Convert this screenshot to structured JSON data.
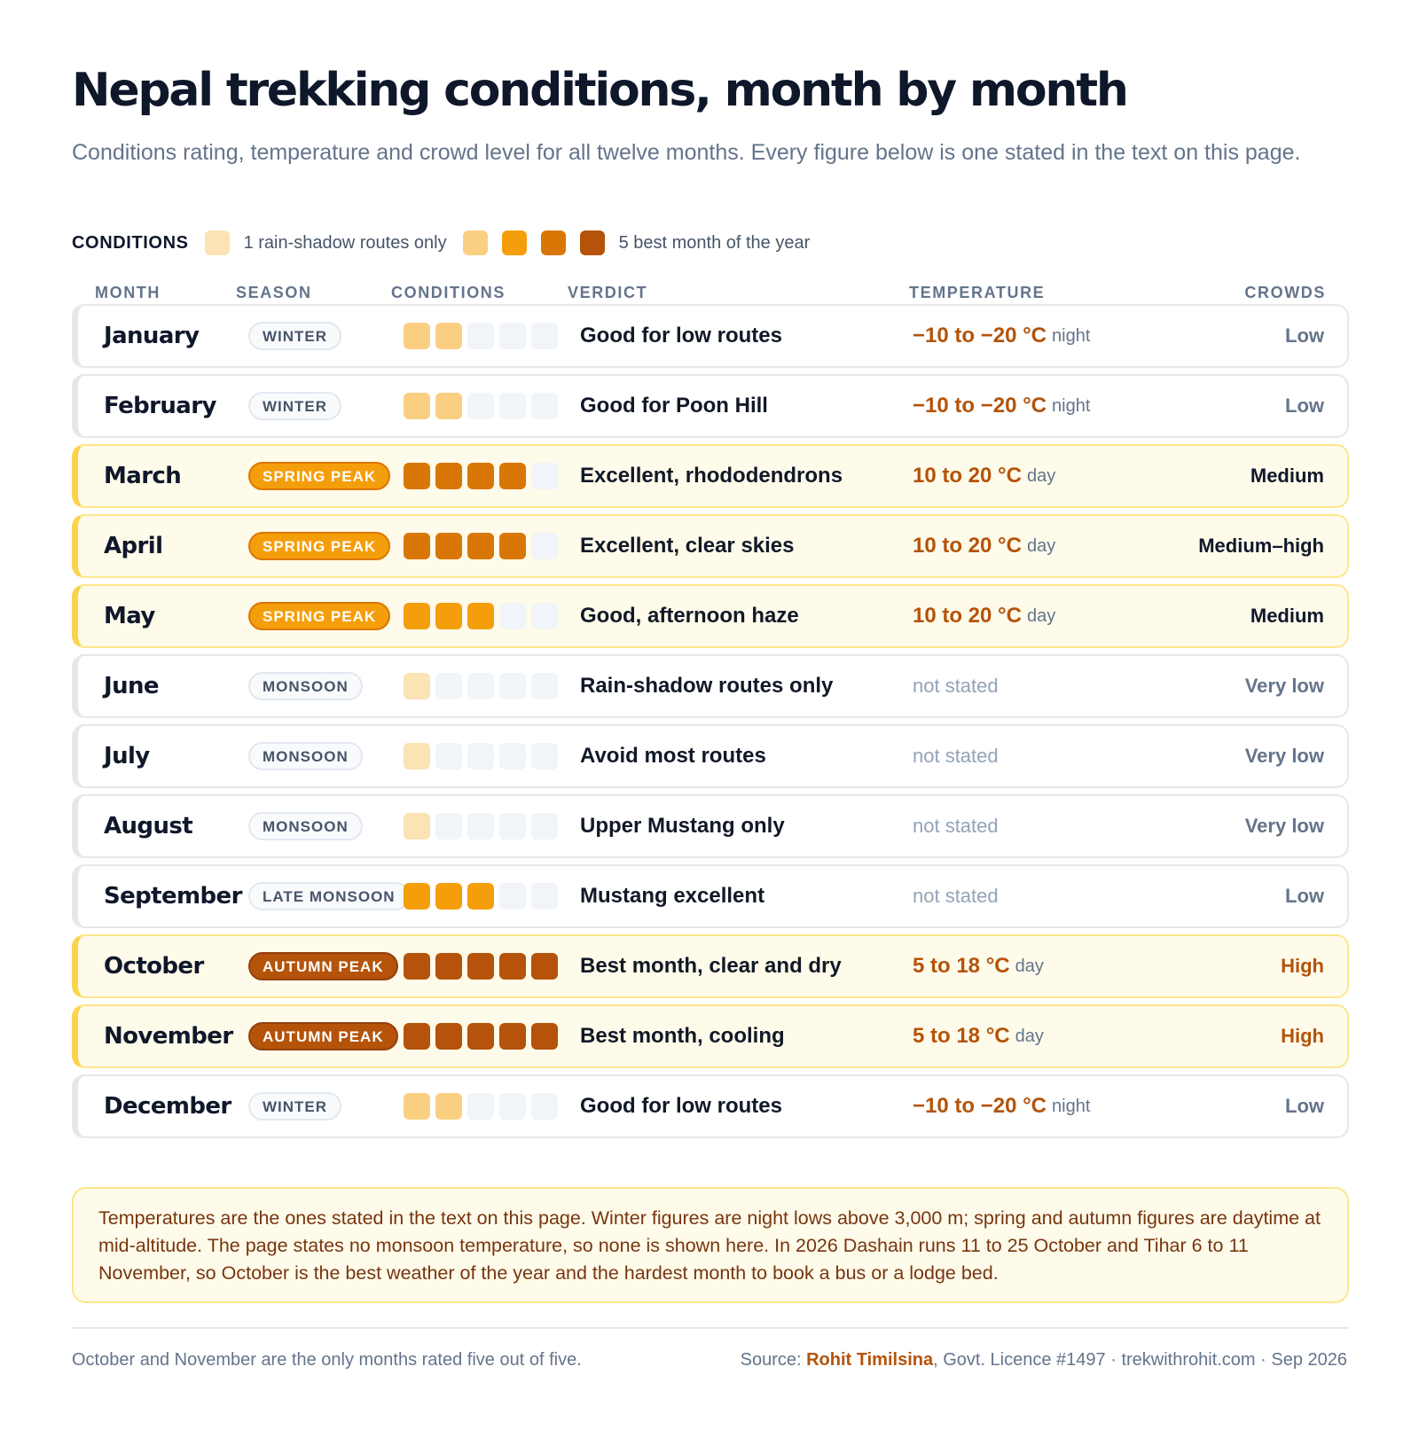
{
  "title": "Nepal trekking conditions, month by month",
  "subtitle": "Conditions rating, temperature and crowd level for all twelve months. Every figure below is one stated in the text on this page.",
  "legend": {
    "title": "CONDITIONS",
    "low_label": "1 rain-shadow routes only",
    "high_label": "5 best month of the year",
    "colors": [
      "#fbe3b4",
      "#fbcf82",
      "#f59e0b",
      "#d97706",
      "#b45309"
    ]
  },
  "headers": {
    "month": "MONTH",
    "season": "SEASON",
    "conditions": "CONDITIONS",
    "verdict": "VERDICT",
    "temperature": "TEMPERATURE",
    "crowds": "CROWDS"
  },
  "rows": [
    {
      "month": "January",
      "season": "WINTER",
      "season_type": "winter",
      "rating": 2,
      "verdict": "Good for low routes",
      "temp": "−10 to −20 °C",
      "temp_unit": "night",
      "crowds": "Low",
      "peak": false
    },
    {
      "month": "February",
      "season": "WINTER",
      "season_type": "winter",
      "rating": 2,
      "verdict": "Good for Poon Hill",
      "temp": "−10 to −20 °C",
      "temp_unit": "night",
      "crowds": "Low",
      "peak": false
    },
    {
      "month": "March",
      "season": "SPRING PEAK",
      "season_type": "spring",
      "rating": 4,
      "verdict": "Excellent, rhododendrons",
      "temp": "10 to 20 °C",
      "temp_unit": "day",
      "crowds": "Medium",
      "peak": true
    },
    {
      "month": "April",
      "season": "SPRING PEAK",
      "season_type": "spring",
      "rating": 4,
      "verdict": "Excellent, clear skies",
      "temp": "10 to 20 °C",
      "temp_unit": "day",
      "crowds": "Medium–high",
      "peak": true
    },
    {
      "month": "May",
      "season": "SPRING PEAK",
      "season_type": "spring",
      "rating": 3,
      "verdict": "Good, afternoon haze",
      "temp": "10 to 20 °C",
      "temp_unit": "day",
      "crowds": "Medium",
      "peak": true
    },
    {
      "month": "June",
      "season": "MONSOON",
      "season_type": "monsoon",
      "rating": 1,
      "verdict": "Rain-shadow routes only",
      "temp": "not stated",
      "temp_unit": "",
      "crowds": "Very low",
      "peak": false
    },
    {
      "month": "July",
      "season": "MONSOON",
      "season_type": "monsoon",
      "rating": 1,
      "verdict": "Avoid most routes",
      "temp": "not stated",
      "temp_unit": "",
      "crowds": "Very low",
      "peak": false
    },
    {
      "month": "August",
      "season": "MONSOON",
      "season_type": "monsoon",
      "rating": 1,
      "verdict": "Upper Mustang only",
      "temp": "not stated",
      "temp_unit": "",
      "crowds": "Very low",
      "peak": false
    },
    {
      "month": "September",
      "season": "LATE MONSOON",
      "season_type": "monsoon",
      "rating": 3,
      "verdict": "Mustang excellent",
      "temp": "not stated",
      "temp_unit": "",
      "crowds": "Low",
      "peak": false
    },
    {
      "month": "October",
      "season": "AUTUMN PEAK",
      "season_type": "autumn",
      "rating": 5,
      "verdict": "Best month, clear and dry",
      "temp": "5 to 18 °C",
      "temp_unit": "day",
      "crowds": "High",
      "peak": true
    },
    {
      "month": "November",
      "season": "AUTUMN PEAK",
      "season_type": "autumn",
      "rating": 5,
      "verdict": "Best month, cooling",
      "temp": "5 to 18 °C",
      "temp_unit": "day",
      "crowds": "High",
      "peak": true
    },
    {
      "month": "December",
      "season": "WINTER",
      "season_type": "winter",
      "rating": 2,
      "verdict": "Good for low routes",
      "temp": "−10 to −20 °C",
      "temp_unit": "night",
      "crowds": "Low",
      "peak": false
    }
  ],
  "note": "Temperatures are the ones stated in the text on this page. Winter figures are night lows above 3,000 m; spring and autumn figures are daytime at mid-altitude. The page states no monsoon temperature, so none is shown here. In 2026 Dashain runs 11 to 25 October and Tihar 6 to 11 November, so October is the best weather of the year and the hardest month to book a bus or a lodge bed.",
  "footer": {
    "left": "October and November are the only months rated five out of five.",
    "source_prefix": "Source: ",
    "author": "Rohit Timilsina",
    "source_rest": ", Govt. Licence #1497 · trekwithrohit.com · Sep 2026"
  }
}
